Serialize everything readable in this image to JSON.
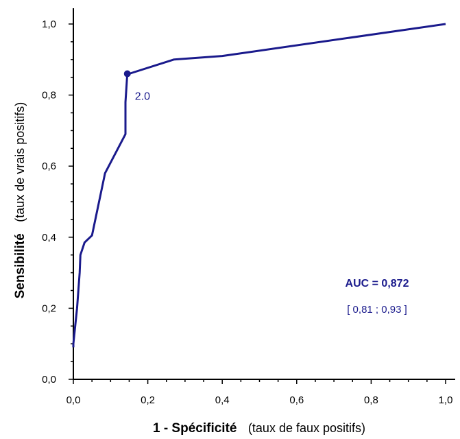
{
  "chart_data": {
    "type": "line",
    "x": [
      0.0,
      0.0,
      0.01,
      0.017,
      0.019,
      0.03,
      0.05,
      0.085,
      0.14,
      0.14,
      0.145,
      0.15,
      0.27,
      0.4,
      1.0
    ],
    "y": [
      0.09,
      0.1,
      0.2,
      0.3,
      0.35,
      0.385,
      0.405,
      0.58,
      0.69,
      0.78,
      0.86,
      0.86,
      0.9,
      0.91,
      1.0
    ],
    "xlim": [
      0,
      1
    ],
    "ylim": [
      0,
      1
    ],
    "x_ticks": [
      "0,0",
      "0,2",
      "0,4",
      "0,6",
      "0,8",
      "1,0"
    ],
    "y_ticks": [
      "0,0",
      "0,2",
      "0,4",
      "0,6",
      "0,8",
      "1,0"
    ],
    "xlabel_strong": "1 - Spécificité",
    "xlabel_normal": "(taux de faux positifs)",
    "ylabel_strong": "Sensibilité",
    "ylabel_normal": "(taux de vrais positifs)",
    "marker": {
      "x": 0.145,
      "y": 0.86,
      "label": "2.0"
    },
    "auc_label": "AUC = 0,872",
    "ci_label": "[ 0,81 ; 0,93 ]",
    "grid": false,
    "line_color": "#1a1a8c"
  }
}
